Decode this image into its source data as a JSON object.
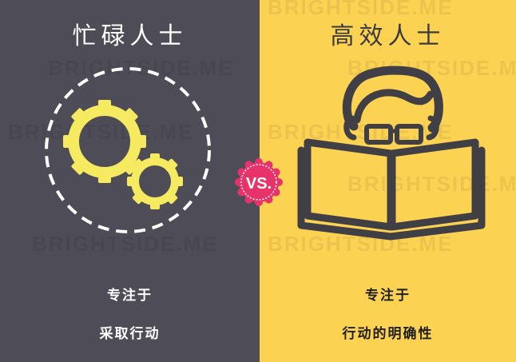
{
  "left": {
    "title": "忙碌人士",
    "caption_line1": "专注于",
    "caption_line2": "采取行动",
    "icon": "gears-icon",
    "bg_color": "#4d4c57",
    "gear_color": "#f5ea60"
  },
  "right": {
    "title": "高效人士",
    "caption_line1": "专注于",
    "caption_line2": "行动的明确性",
    "icon": "reading-person-icon",
    "bg_color": "#fcd253",
    "ink_color": "#3f3f45"
  },
  "vs_badge": {
    "label": "VS.",
    "color": "#e7336a"
  },
  "watermark": {
    "text": "BRIGHTSIDE.ME"
  }
}
